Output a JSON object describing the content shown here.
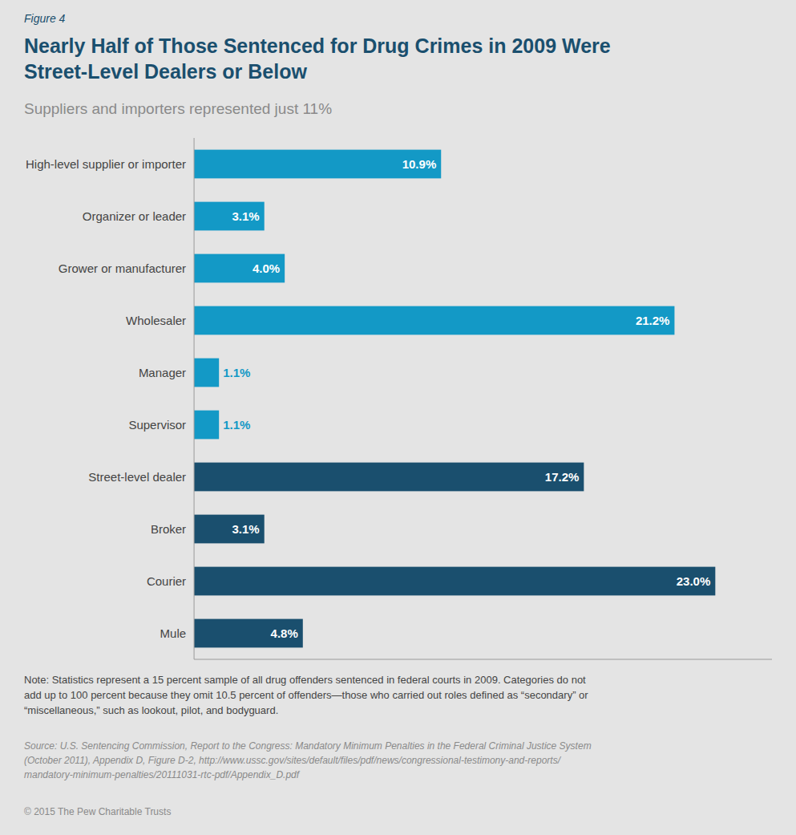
{
  "chart_data": {
    "type": "bar",
    "orientation": "horizontal",
    "title": "Nearly Half of Those Sentenced for Drug Crimes in 2009 Were\nStreet-Level Dealers or Below",
    "subtitle": "Suppliers and importers represented just 11%",
    "categories": [
      "High-level supplier or importer",
      "Organizer or leader",
      "Grower or manufacturer",
      "Wholesaler",
      "Manager",
      "Supervisor",
      "Street-level dealer",
      "Broker",
      "Courier",
      "Mule"
    ],
    "values": [
      10.9,
      3.1,
      4.0,
      21.2,
      1.1,
      1.1,
      17.2,
      3.1,
      23.0,
      4.8
    ],
    "value_labels": [
      "10.9%",
      "3.1%",
      "4.0%",
      "21.2%",
      "1.1%",
      "1.1%",
      "17.2%",
      "3.1%",
      "23.0%",
      "4.8%"
    ],
    "colors": [
      "#1399c6",
      "#1399c6",
      "#1399c6",
      "#1399c6",
      "#1399c6",
      "#1399c6",
      "#1a4f6e",
      "#1a4f6e",
      "#1a4f6e",
      "#1a4f6e"
    ],
    "xlim": [
      0,
      25.5
    ],
    "data_labels": true,
    "tick_labels": "y",
    "grid": false,
    "annotations": [
      "Figure 4",
      "Note: Statistics represent a 15 percent sample of all drug offenders sentenced in federal courts in 2009. Categories do not\nadd up to 100 percent because they omit 10.5 percent of offenders—those who carried out roles defined as “secondary” or\n“miscellaneous,” such as lookout, pilot, and bodyguard.",
      "Source: U.S. Sentencing Commission, Report to the Congress: Mandatory Minimum Penalties in the Federal Criminal Justice System\n(October 2011), Appendix D, Figure D-2, http://www.ussc.gov/sites/default/files/pdf/news/congressional-testimony-and-reports/\nmandatory-minimum-penalties/20111031-rtc-pdf/Appendix_D.pdf",
      "© 2015 The Pew Charitable Trusts"
    ]
  }
}
